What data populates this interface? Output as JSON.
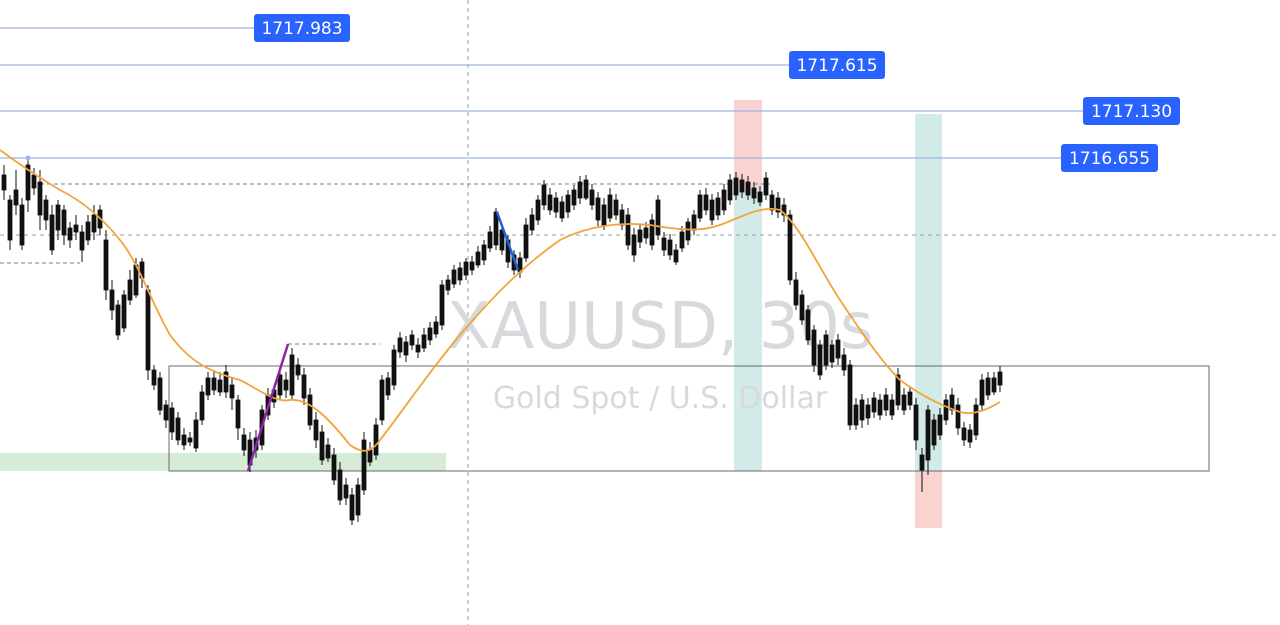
{
  "watermark": {
    "symbol": "XAUUSD, 30s",
    "description": "Gold Spot / U.S. Dollar"
  },
  "colors": {
    "price_line": "#9fb4e6",
    "label_bg": "#2962ff",
    "candle_up": "#ffffff",
    "candle_down": "#111111",
    "candle_wick": "#111111",
    "ma_line": "#f2a43a",
    "green_zone": "#d6ecd6",
    "teal_zone": "#cfe8e6",
    "red_zone": "#f6d0cc",
    "purple_trend": "#8e24aa",
    "blue_trend": "#1e63d6"
  },
  "price_levels": [
    {
      "value": 1717.983,
      "label": "1717.983"
    },
    {
      "value": 1717.615,
      "label": "1717.615"
    },
    {
      "value": 1717.13,
      "label": "1717.130"
    },
    {
      "value": 1716.655,
      "label": "1716.655"
    }
  ],
  "chart_data": {
    "type": "candlestick",
    "title": "XAUUSD, 30s",
    "subtitle": "Gold Spot / U.S. Dollar",
    "interval": "30s",
    "horizontal_levels": [
      1717.983,
      1717.615,
      1717.13,
      1716.655
    ],
    "moving_average": "orange",
    "candles_close_path": [
      1716.5,
      1716.3,
      1716.1,
      1715.9,
      1715.6,
      1715.2,
      1714.8,
      1714.4,
      1714.1,
      1713.9,
      1713.8,
      1714.0,
      1714.3,
      1713.7,
      1713.4,
      1713.6,
      1714.2,
      1714.8,
      1715.4,
      1715.9,
      1716.2,
      1716.4,
      1716.3,
      1716.2,
      1716.1,
      1716.3,
      1716.5,
      1716.6,
      1716.5,
      1716.1,
      1715.5,
      1714.7,
      1714.2,
      1714.0,
      1714.1,
      1713.9,
      1713.9,
      1714.3,
      1714.5
    ]
  }
}
